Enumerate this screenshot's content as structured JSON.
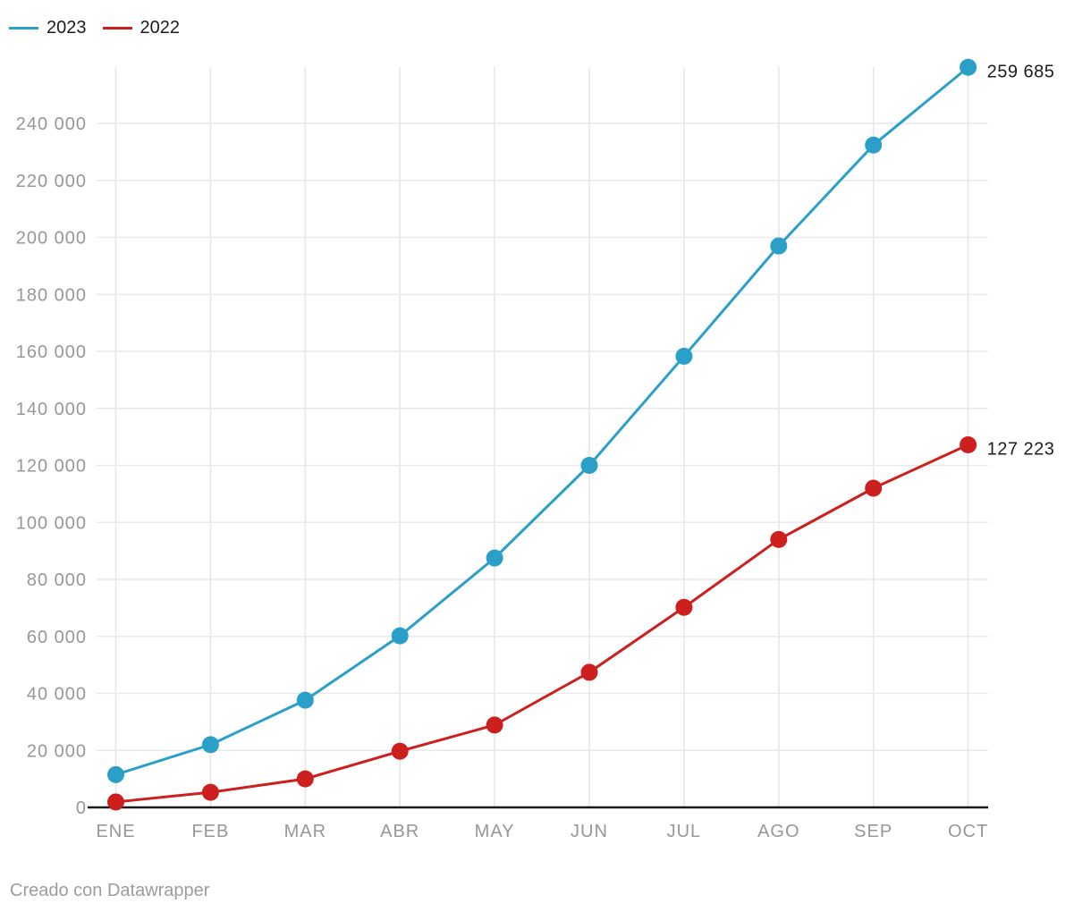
{
  "legend": {
    "items": [
      {
        "label": "2023",
        "color": "#2aa0c8"
      },
      {
        "label": "2022",
        "color": "#cc1f1e"
      }
    ]
  },
  "footer": {
    "text": "Creado con Datawrapper"
  },
  "chart_data": {
    "type": "line",
    "title": "",
    "categories": [
      "ENE",
      "FEB",
      "MAR",
      "ABR",
      "MAY",
      "JUN",
      "JUL",
      "AGO",
      "SEP",
      "OCT"
    ],
    "series": [
      {
        "name": "2023",
        "color": "#2aa0c8",
        "values": [
          11500,
          22000,
          37600,
          60200,
          87500,
          120000,
          158300,
          197000,
          232400,
          259685
        ],
        "end_label": "259 685"
      },
      {
        "name": "2022",
        "color": "#cc1f1e",
        "values": [
          1900,
          5300,
          10000,
          19700,
          28900,
          47400,
          70200,
          94000,
          112000,
          127223
        ],
        "end_label": "127 223"
      }
    ],
    "ylim": [
      0,
      259685
    ],
    "yticks": {
      "values": [
        0,
        20000,
        40000,
        60000,
        80000,
        100000,
        120000,
        140000,
        160000,
        180000,
        200000,
        220000,
        240000
      ],
      "labels": [
        "0",
        "20 000",
        "40 000",
        "60 000",
        "80 000",
        "100 000",
        "120 000",
        "140 000",
        "160 000",
        "180 000",
        "200 000",
        "220 000",
        "240 000"
      ]
    },
    "grid": true,
    "legend_position": "top-left",
    "marker": "circle",
    "colors": {
      "grid": "#e8e8e8",
      "axis": "#1a1a1a",
      "tick_text": "#979797",
      "value_text": "#1d1d1d"
    }
  }
}
